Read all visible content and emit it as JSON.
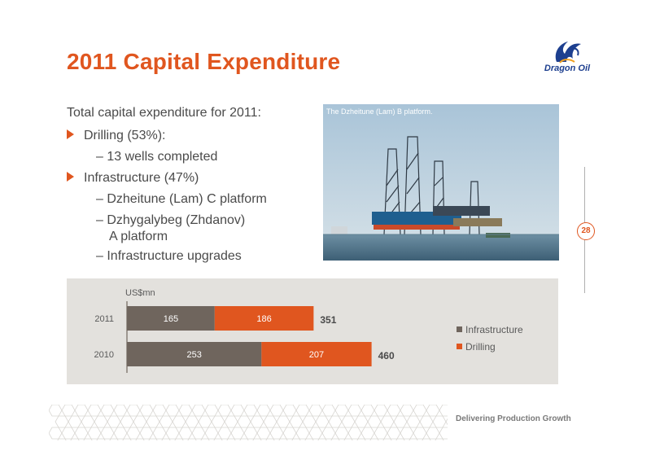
{
  "slide": {
    "title": "2011 Capital Expenditure",
    "logo_text": "Dragon Oil",
    "page_number": "28",
    "footer": "Delivering Production Growth"
  },
  "content": {
    "intro": "Total capital expenditure for 2011:",
    "bullets": [
      {
        "label": "Drilling (53%):",
        "subs": [
          "– 13 wells completed"
        ]
      },
      {
        "label": "Infrastructure (47%)",
        "subs": [
          "– Dzheitune (Lam) C platform",
          "– Dzhygalybeg (Zhdanov)",
          "A platform",
          "– Infrastructure upgrades"
        ]
      }
    ]
  },
  "photo": {
    "caption": "The Dzheitune (Lam) B platform."
  },
  "colors": {
    "accent": "#e0561f",
    "infrastructure": "#6f655d",
    "drilling": "#e0561f",
    "panel": "#e3e1dd"
  },
  "chart_data": {
    "type": "bar",
    "orientation": "horizontal",
    "stacked": true,
    "unit_label": "US$mn",
    "categories": [
      "2011",
      "2010"
    ],
    "series": [
      {
        "name": "Infrastructure",
        "values": [
          165,
          253
        ]
      },
      {
        "name": "Drilling",
        "values": [
          186,
          207
        ]
      }
    ],
    "totals": [
      351,
      460
    ],
    "legend_position": "right",
    "grid": false
  }
}
